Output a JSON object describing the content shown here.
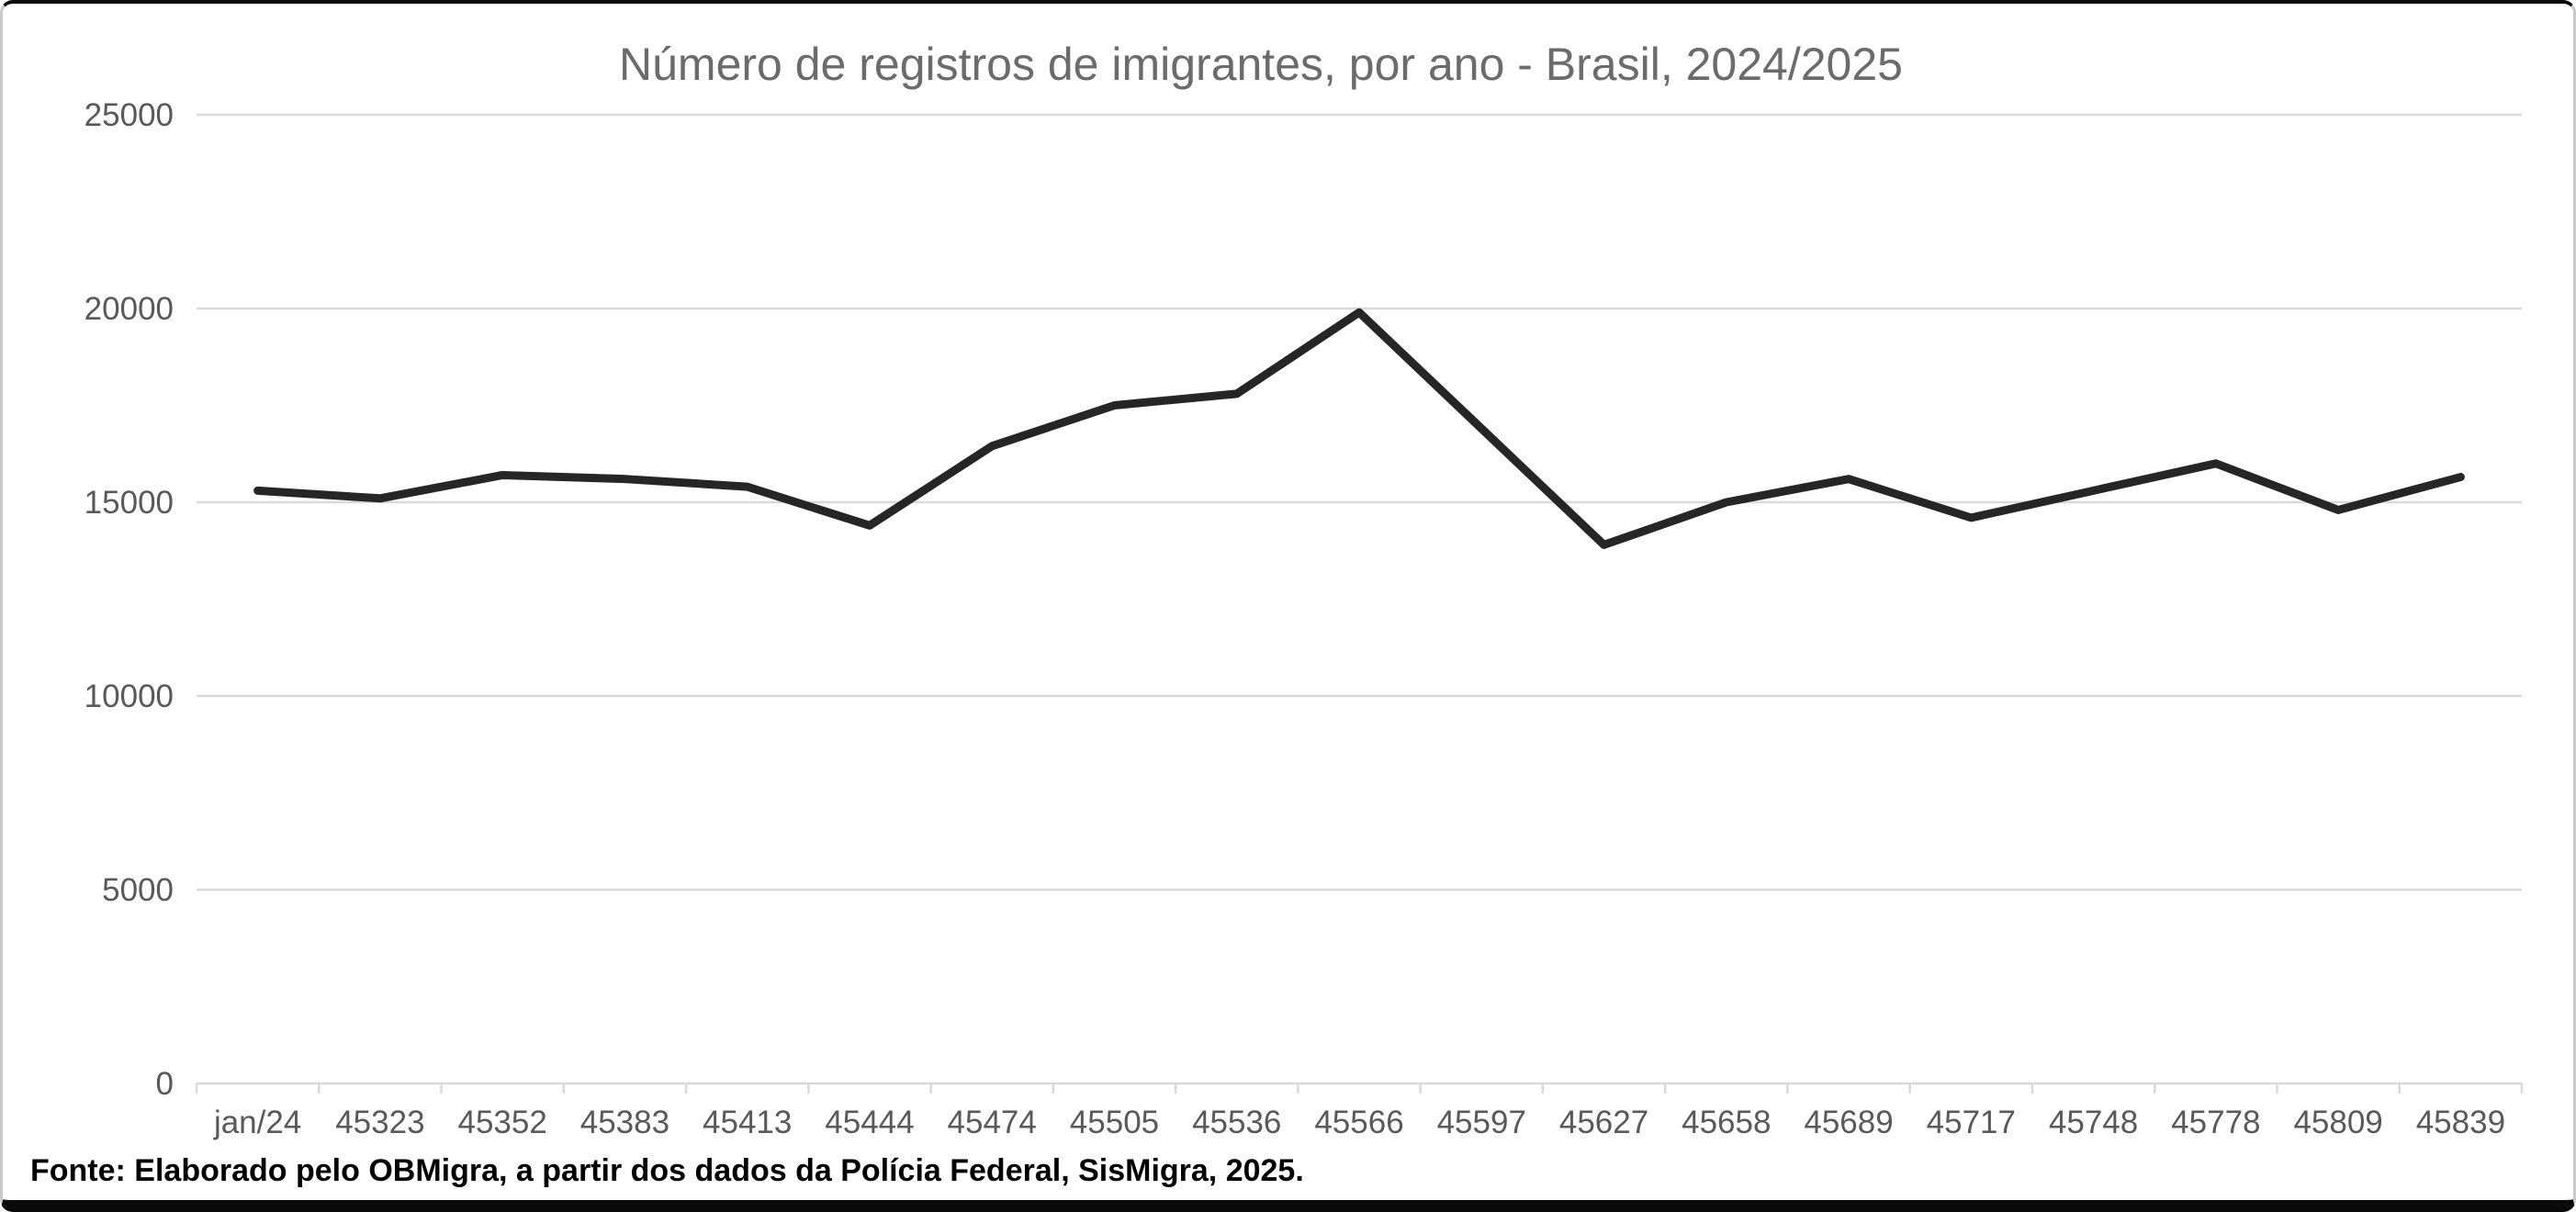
{
  "chart_data": {
    "type": "line",
    "title": "Número de registros de imigrantes, por ano - Brasil, 2024/2025",
    "categories": [
      "jan/24",
      "45323",
      "45352",
      "45383",
      "45413",
      "45444",
      "45474",
      "45505",
      "45536",
      "45566",
      "45597",
      "45627",
      "45658",
      "45689",
      "45717",
      "45748",
      "45778",
      "45809",
      "45839"
    ],
    "values": [
      15300,
      15100,
      15700,
      15600,
      15400,
      14400,
      16450,
      17500,
      17800,
      19900,
      16900,
      13900,
      15000,
      15600,
      14600,
      15300,
      16000,
      14800,
      15650
    ],
    "xlabel": "",
    "ylabel": "",
    "ylim": [
      0,
      25000
    ],
    "yticks": [
      0,
      5000,
      10000,
      15000,
      20000,
      25000
    ],
    "ytick_labels": [
      "0",
      "5000",
      "10000",
      "15000",
      "20000",
      "25000"
    ],
    "grid": "horizontal",
    "legend": "none",
    "line_color": "#262626",
    "gridline_color": "#d9d9d9",
    "axis_line_color": "#d9d9d9",
    "axis_text_color": "#595959",
    "title_color": "#6b6b6b"
  },
  "source_note": "Fonte: Elaborado pelo OBMigra, a partir dos dados da Polícia Federal, SisMigra, 2025."
}
